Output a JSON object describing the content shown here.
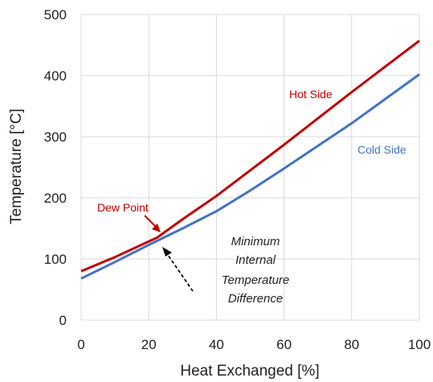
{
  "chart_data": {
    "type": "line",
    "xlabel": "Heat Exchanged [%]",
    "ylabel": "Temperature [°C]",
    "xlim": [
      0,
      100
    ],
    "ylim": [
      0,
      500
    ],
    "x_ticks": [
      0,
      20,
      40,
      60,
      80,
      100
    ],
    "y_ticks": [
      0,
      100,
      200,
      300,
      400,
      500
    ],
    "grid": true,
    "series": [
      {
        "name": "Hot Side",
        "color": "#C00000",
        "x": [
          0,
          10,
          22.5,
          30,
          40,
          50,
          60,
          70,
          80,
          90,
          100
        ],
        "y": [
          80,
          103,
          135,
          165,
          203,
          245,
          287,
          330,
          373,
          415,
          457
        ]
      },
      {
        "name": "Cold Side",
        "color": "#4472C4",
        "x": [
          0,
          10,
          20,
          30,
          40,
          50,
          60,
          70,
          80,
          90,
          100
        ],
        "y": [
          68,
          95,
          123,
          150,
          178,
          212,
          248,
          285,
          322,
          362,
          402
        ]
      }
    ],
    "annotations": {
      "hot_side": "Hot Side",
      "cold_side": "Cold Side",
      "dew_point": "Dew Point",
      "min_itd": [
        "Minimum",
        "Internal",
        "Temperature",
        "Difference"
      ]
    }
  }
}
